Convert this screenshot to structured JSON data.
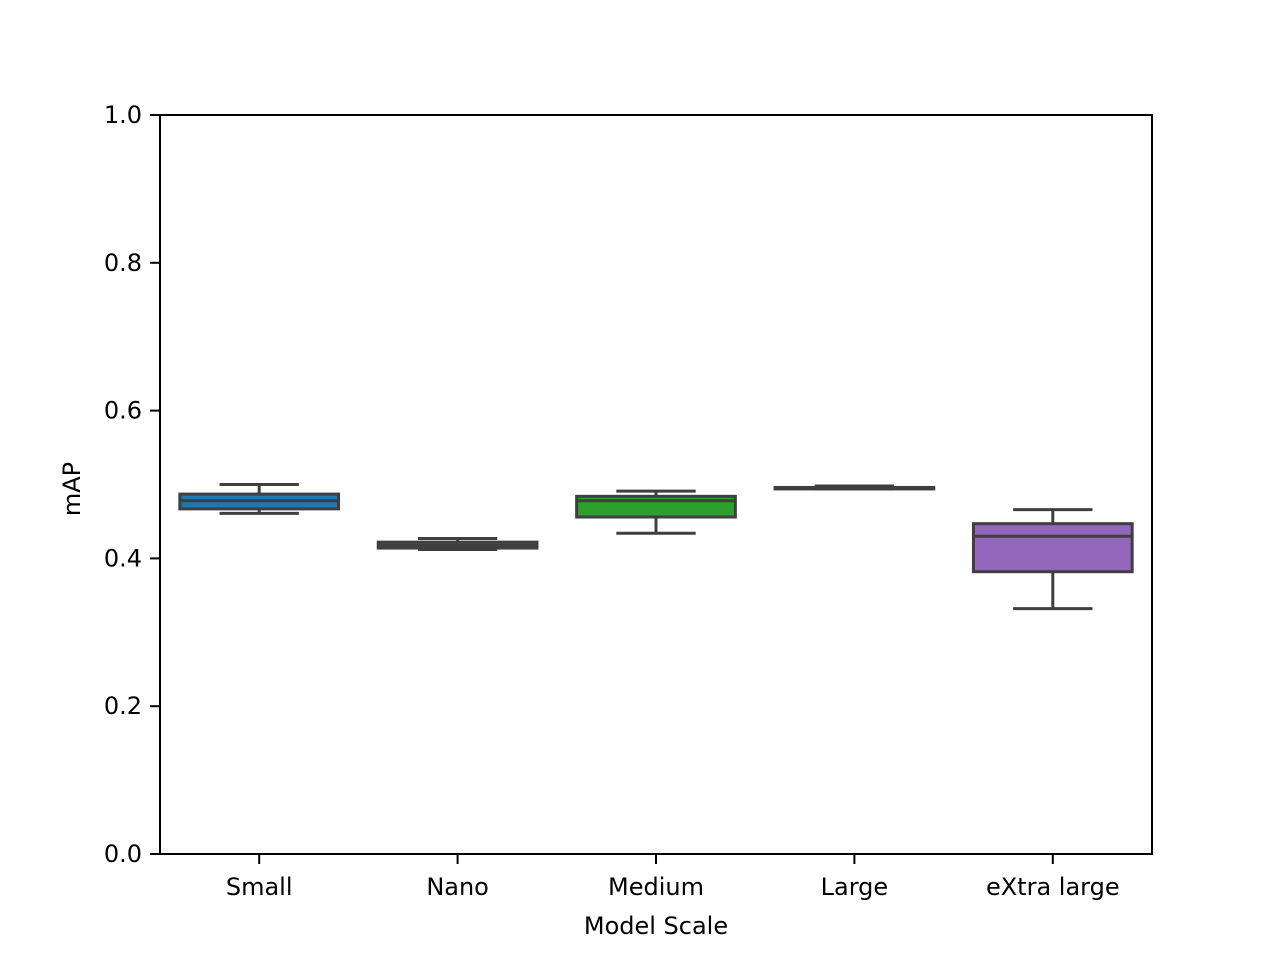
{
  "chart_data": {
    "type": "box",
    "title": "",
    "xlabel": "Model Scale",
    "ylabel": "mAP",
    "ylim": [
      0.0,
      1.0
    ],
    "yticks": [
      "0.0",
      "0.2",
      "0.4",
      "0.6",
      "0.8",
      "1.0"
    ],
    "grid": false,
    "categories": [
      "Small",
      "Nano",
      "Medium",
      "Large",
      "eXtra large"
    ],
    "boxes": [
      {
        "category": "Small",
        "color": "#1f77b4",
        "whisker_low": 0.461,
        "q1": 0.467,
        "median": 0.478,
        "q3": 0.487,
        "whisker_high": 0.5
      },
      {
        "category": "Nano",
        "color": "#ff7f0e",
        "whisker_low": 0.412,
        "q1": 0.414,
        "median": 0.418,
        "q3": 0.422,
        "whisker_high": 0.427
      },
      {
        "category": "Medium",
        "color": "#2ca02c",
        "whisker_low": 0.434,
        "q1": 0.456,
        "median": 0.478,
        "q3": 0.484,
        "whisker_high": 0.491
      },
      {
        "category": "Large",
        "color": "#d62728",
        "whisker_low": 0.494,
        "q1": 0.494,
        "median": 0.495,
        "q3": 0.496,
        "whisker_high": 0.498
      },
      {
        "category": "eXtra large",
        "color": "#9467bd",
        "whisker_low": 0.332,
        "q1": 0.382,
        "median": 0.43,
        "q3": 0.447,
        "whisker_high": 0.466
      }
    ]
  }
}
